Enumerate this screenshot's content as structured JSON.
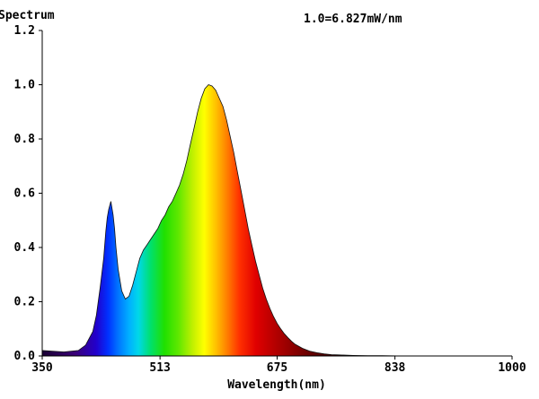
{
  "chart_data": {
    "type": "area",
    "title": "Spectrum",
    "annotation": "1.0=6.827mW/nm",
    "xlabel": "Wavelength(nm)",
    "ylabel": "",
    "xlim": [
      350,
      1000
    ],
    "ylim": [
      0,
      1.2
    ],
    "x_ticks": [
      350,
      513,
      675,
      838,
      1000
    ],
    "y_ticks": [
      "0.0",
      "0.2",
      "0.4",
      "0.6",
      "0.8",
      "1.0",
      "1.2"
    ],
    "grid": false,
    "fill": "wavelength-color-gradient",
    "series": [
      {
        "x": [
          350,
          380,
          400,
          410,
          420,
          425,
          430,
          435,
          438,
          440,
          442,
          445,
          448,
          450,
          452,
          455,
          460,
          465,
          470,
          475,
          480,
          485,
          490,
          495,
          500,
          505,
          510,
          515,
          520,
          525,
          530,
          535,
          540,
          545,
          550,
          555,
          560,
          565,
          570,
          575,
          580,
          585,
          590,
          595,
          600,
          605,
          610,
          615,
          620,
          625,
          630,
          635,
          640,
          645,
          650,
          655,
          660,
          665,
          670,
          675,
          680,
          685,
          690,
          695,
          700,
          710,
          720,
          730,
          740,
          750,
          760,
          780,
          800,
          820,
          850,
          900,
          950,
          1000
        ],
        "y": [
          0.02,
          0.015,
          0.02,
          0.04,
          0.09,
          0.15,
          0.25,
          0.36,
          0.46,
          0.51,
          0.54,
          0.57,
          0.52,
          0.47,
          0.4,
          0.32,
          0.24,
          0.21,
          0.22,
          0.26,
          0.31,
          0.36,
          0.39,
          0.41,
          0.43,
          0.45,
          0.47,
          0.5,
          0.52,
          0.55,
          0.57,
          0.6,
          0.63,
          0.67,
          0.72,
          0.78,
          0.84,
          0.9,
          0.95,
          0.985,
          1.0,
          0.995,
          0.98,
          0.95,
          0.92,
          0.87,
          0.81,
          0.75,
          0.68,
          0.61,
          0.54,
          0.47,
          0.41,
          0.35,
          0.3,
          0.25,
          0.21,
          0.175,
          0.145,
          0.12,
          0.1,
          0.082,
          0.067,
          0.054,
          0.043,
          0.028,
          0.018,
          0.012,
          0.008,
          0.005,
          0.004,
          0.002,
          0.001,
          0.001,
          0.0,
          0.0,
          0.0,
          0.0
        ]
      }
    ]
  }
}
